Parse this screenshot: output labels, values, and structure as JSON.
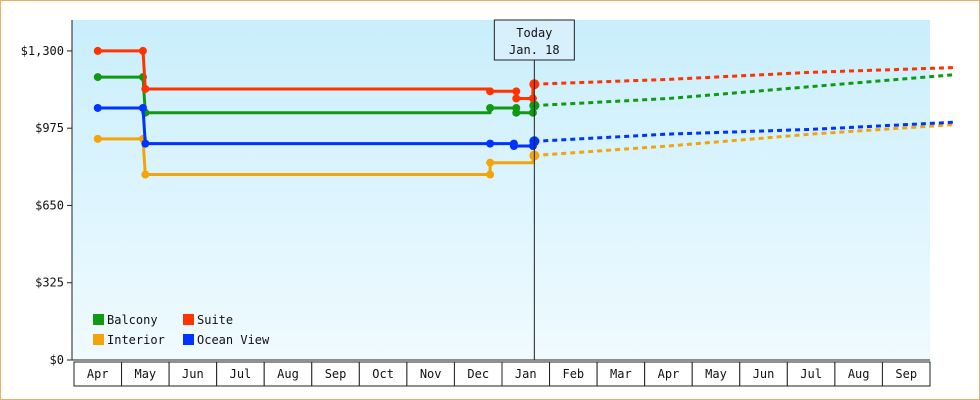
{
  "chart_data": {
    "type": "line",
    "title": "",
    "xlabel": "",
    "ylabel": "",
    "ylim": [
      0,
      1430
    ],
    "y_ticks": [
      0,
      325,
      650,
      975,
      1300
    ],
    "y_tick_labels": [
      "$0",
      "$325",
      "$650",
      "$975",
      "$1,300"
    ],
    "month_labels": [
      "Apr",
      "May",
      "Jun",
      "Jul",
      "Aug",
      "Sep",
      "Oct",
      "Nov",
      "Dec",
      "Jan",
      "Feb",
      "Mar",
      "Apr",
      "May",
      "Jun",
      "Jul",
      "Aug",
      "Sep"
    ],
    "today": {
      "line1": "Today",
      "line2": "Jan. 18",
      "x": 9.18
    },
    "grid": false,
    "legend_position": "bottom-left",
    "series": [
      {
        "name": "Balcony",
        "color": "#119911",
        "history": [
          [
            0,
            1190
          ],
          [
            0.95,
            1190
          ],
          [
            1.0,
            1040
          ],
          [
            8.25,
            1040
          ],
          [
            8.25,
            1060
          ],
          [
            8.8,
            1060
          ],
          [
            8.8,
            1040
          ],
          [
            9.15,
            1040
          ],
          [
            9.15,
            1070
          ]
        ],
        "markers": [
          [
            0,
            1190
          ],
          [
            0.95,
            1190
          ],
          [
            1.0,
            1040
          ],
          [
            8.25,
            1060
          ],
          [
            8.8,
            1060
          ],
          [
            8.8,
            1040
          ],
          [
            9.15,
            1040
          ],
          [
            9.18,
            1070
          ]
        ],
        "forecast": [
          [
            9.18,
            1070
          ],
          [
            12,
            1100
          ],
          [
            15,
            1150
          ],
          [
            18,
            1200
          ]
        ]
      },
      {
        "name": "Suite",
        "color": "#ff3300",
        "history": [
          [
            0,
            1300
          ],
          [
            0.95,
            1300
          ],
          [
            1.0,
            1140
          ],
          [
            8.25,
            1140
          ],
          [
            8.25,
            1130
          ],
          [
            8.8,
            1130
          ],
          [
            8.8,
            1100
          ],
          [
            9.15,
            1100
          ],
          [
            9.15,
            1160
          ]
        ],
        "markers": [
          [
            0,
            1300
          ],
          [
            0.95,
            1300
          ],
          [
            1.0,
            1140
          ],
          [
            8.25,
            1130
          ],
          [
            8.8,
            1130
          ],
          [
            8.8,
            1100
          ],
          [
            9.15,
            1100
          ],
          [
            9.18,
            1160
          ]
        ],
        "forecast": [
          [
            9.18,
            1160
          ],
          [
            12,
            1180
          ],
          [
            15,
            1210
          ],
          [
            18,
            1230
          ]
        ]
      },
      {
        "name": "Interior",
        "color": "#f2a50a",
        "history": [
          [
            0,
            930
          ],
          [
            0.95,
            930
          ],
          [
            1.0,
            780
          ],
          [
            8.25,
            780
          ],
          [
            8.25,
            830
          ],
          [
            9.15,
            830
          ],
          [
            9.15,
            860
          ]
        ],
        "markers": [
          [
            0,
            930
          ],
          [
            0.95,
            930
          ],
          [
            1.0,
            780
          ],
          [
            8.25,
            780
          ],
          [
            8.25,
            830
          ],
          [
            9.18,
            860
          ]
        ],
        "forecast": [
          [
            9.18,
            860
          ],
          [
            12,
            900
          ],
          [
            15,
            950
          ],
          [
            18,
            990
          ]
        ]
      },
      {
        "name": "Ocean View",
        "color": "#0033ff",
        "history": [
          [
            0,
            1060
          ],
          [
            0.95,
            1060
          ],
          [
            1.0,
            910
          ],
          [
            8.25,
            910
          ],
          [
            8.75,
            910
          ],
          [
            8.75,
            900
          ],
          [
            9.15,
            900
          ],
          [
            9.15,
            920
          ]
        ],
        "markers": [
          [
            0,
            1060
          ],
          [
            0.95,
            1060
          ],
          [
            1.0,
            910
          ],
          [
            8.25,
            910
          ],
          [
            8.75,
            910
          ],
          [
            8.75,
            900
          ],
          [
            9.15,
            900
          ],
          [
            9.18,
            920
          ]
        ],
        "forecast": [
          [
            9.18,
            920
          ],
          [
            12,
            950
          ],
          [
            15,
            970
          ],
          [
            18,
            1000
          ]
        ]
      }
    ]
  }
}
